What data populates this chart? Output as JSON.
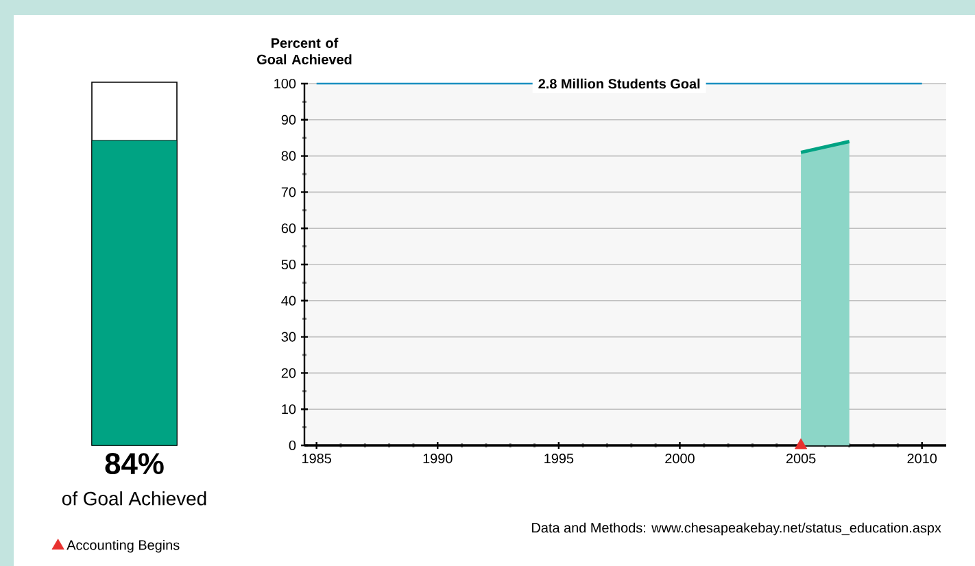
{
  "chart_data": [
    {
      "type": "bar",
      "categories": [
        null
      ],
      "values": [
        84
      ],
      "color": "#00a383",
      "ylim": [
        0,
        100
      ],
      "value_labels": [
        "84%"
      ],
      "annotations": [
        "of Goal Achieved"
      ]
    },
    {
      "type": "area",
      "ylabel": "Percent of Goal Achieved",
      "x": [
        2005,
        2007
      ],
      "series": [
        {
          "type": "area",
          "color": "#00a383",
          "values": [
            81,
            84
          ]
        },
        {
          "type": "scatter",
          "name": "Accounting Begins",
          "color": "#e8312f",
          "x": [
            2005
          ],
          "values": [
            0
          ],
          "marker": "triangle"
        }
      ],
      "xlim": [
        1984.5,
        2011
      ],
      "xticks": [
        1985,
        1990,
        1995,
        2000,
        2005,
        2010
      ],
      "ylim": [
        0,
        100
      ],
      "yticks": [
        0,
        10,
        20,
        30,
        40,
        50,
        60,
        70,
        80,
        90,
        100
      ],
      "grid": "y",
      "legend": "bottom left",
      "ref_lines": [
        {
          "axis": "y",
          "value": 100,
          "label": "2.8 Million Students Goal",
          "color": "#1a8fc0"
        }
      ],
      "annotations": [
        "Data and Methods: www.chesapeakebay.net/status_education.aspx"
      ]
    }
  ]
}
